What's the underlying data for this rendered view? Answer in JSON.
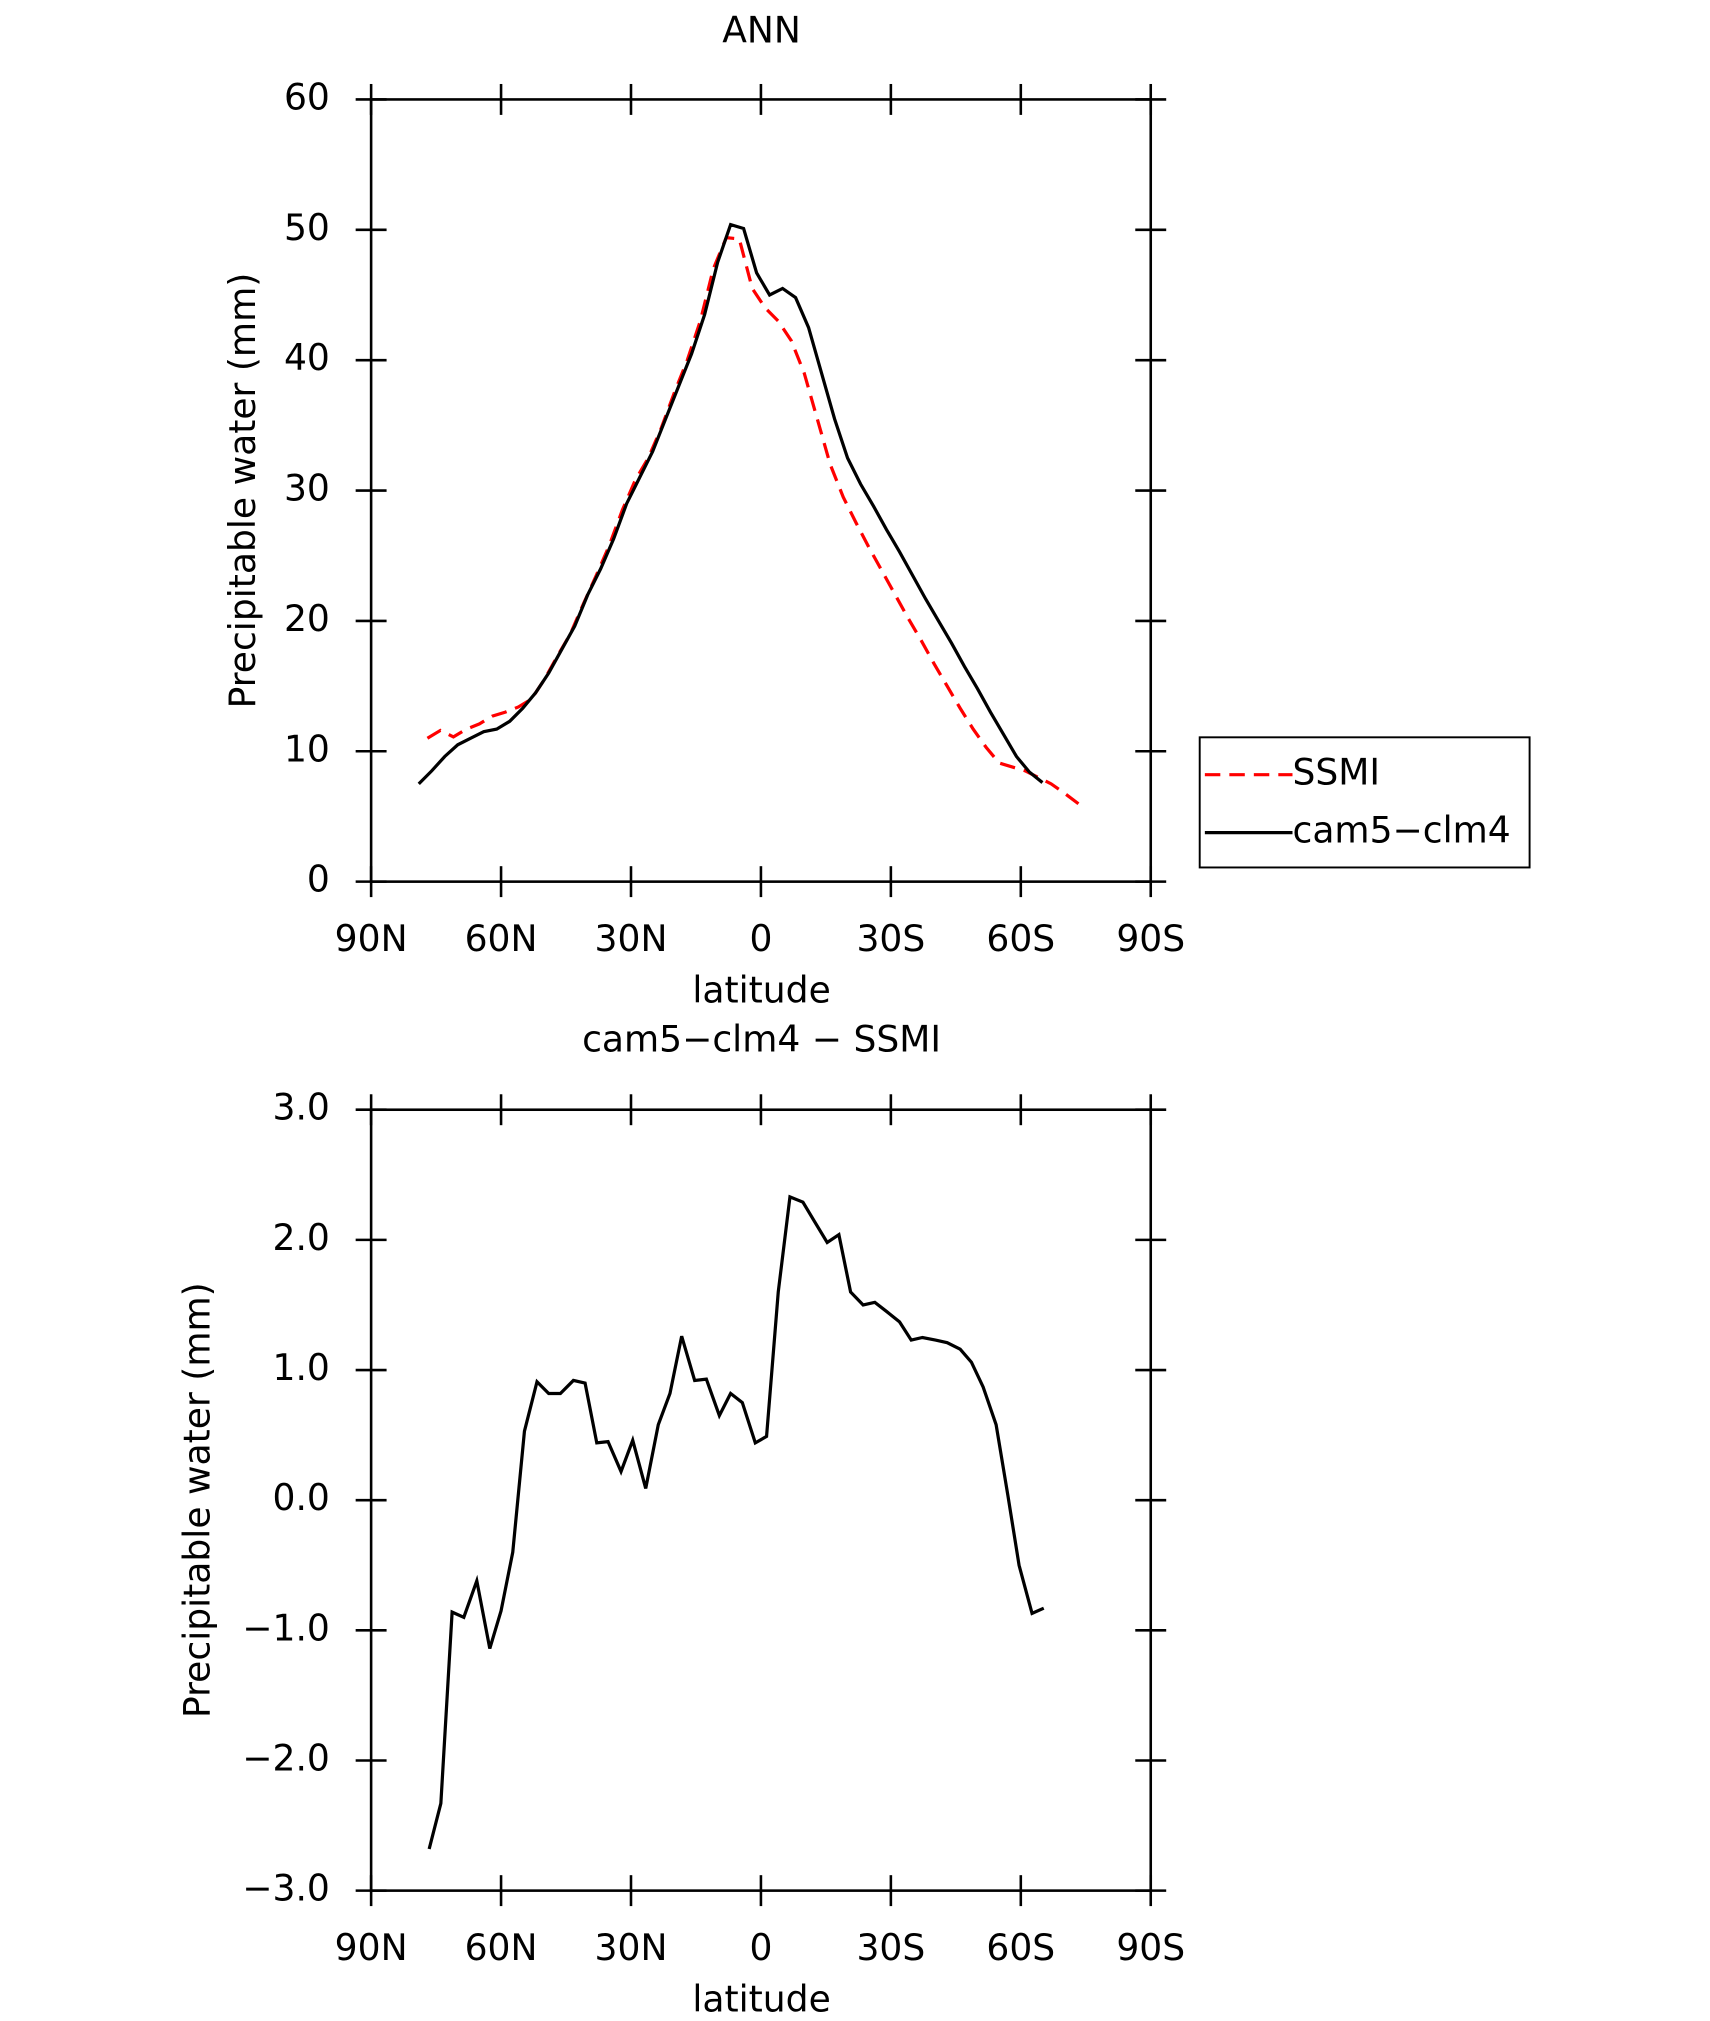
{
  "chart_data": [
    {
      "type": "line",
      "title": "ANN",
      "xlabel": "latitude",
      "ylabel": "Precipitable water (mm)",
      "xlim": [
        90,
        -90
      ],
      "xticks": [
        {
          "value": 90,
          "label": "90N"
        },
        {
          "value": 60,
          "label": "60N"
        },
        {
          "value": 30,
          "label": "30N"
        },
        0,
        {
          "value": -30,
          "label": "30S"
        },
        {
          "value": -60,
          "label": "60S"
        },
        {
          "value": -90,
          "label": "90S"
        }
      ],
      "ylim": [
        0,
        60
      ],
      "yticks": [
        0,
        10,
        20,
        30,
        40,
        50,
        60
      ],
      "legend": "right",
      "series": [
        {
          "name": "SSMI",
          "color": "#ff0000",
          "linestyle": "dashed",
          "x": [
            77,
            74,
            71,
            68,
            65,
            62,
            59,
            56,
            53,
            50,
            47,
            44,
            41,
            38,
            35,
            32,
            29,
            26,
            23,
            20,
            17,
            14,
            11,
            8,
            5,
            2,
            -1,
            -4,
            -7,
            -10,
            -13,
            -16,
            -19,
            -22,
            -25,
            -28,
            -31,
            -34,
            -37,
            -40,
            -43,
            -46,
            -49,
            -52,
            -55,
            -58,
            -61,
            -64,
            -67,
            -70,
            -74
          ],
          "values": [
            11,
            11.6,
            11.1,
            11.7,
            12.1,
            12.7,
            13,
            13.4,
            14,
            15.5,
            17.3,
            19,
            21.3,
            23.5,
            25.8,
            28.5,
            30.8,
            32.5,
            34.8,
            37.5,
            40,
            43,
            47,
            49.4,
            49.3,
            45.5,
            44,
            43,
            41.5,
            39,
            35.5,
            32,
            29.5,
            27.5,
            25.6,
            23.8,
            22,
            20.2,
            18.5,
            16.7,
            15,
            13.3,
            11.7,
            10.3,
            9.1,
            8.8,
            8.5,
            8,
            7.5,
            6.8,
            5.8
          ]
        },
        {
          "name": "cam5−clm4",
          "color": "#000000",
          "linestyle": "solid",
          "x": [
            79,
            76,
            73,
            70,
            67,
            64,
            61,
            58,
            55,
            52,
            49,
            46,
            43,
            40,
            37,
            34,
            31,
            28,
            25,
            22,
            19,
            16,
            13,
            10,
            7,
            4,
            1,
            -2,
            -5,
            -8,
            -11,
            -14,
            -17,
            -20,
            -23,
            -26,
            -29,
            -32,
            -35,
            -38,
            -41,
            -44,
            -47,
            -50,
            -53,
            -56,
            -59,
            -62,
            -65
          ],
          "values": [
            7.5,
            8.5,
            9.6,
            10.5,
            11,
            11.5,
            11.7,
            12.3,
            13.3,
            14.5,
            16,
            17.8,
            19.6,
            22,
            24,
            26.3,
            29,
            31,
            33,
            35.5,
            38,
            40.5,
            43.5,
            47.5,
            50.4,
            50.1,
            46.7,
            45,
            45.5,
            44.8,
            42.5,
            39,
            35.5,
            32.5,
            30.5,
            28.8,
            27,
            25.3,
            23.5,
            21.7,
            20,
            18.3,
            16.5,
            14.8,
            13,
            11.3,
            9.6,
            8.4,
            7.6
          ]
        }
      ]
    },
    {
      "type": "line",
      "title": "cam5−clm4 − SSMI",
      "xlabel": "latitude",
      "ylabel": "Precipitable water (mm)",
      "xlim": [
        90,
        -90
      ],
      "xticks": [
        {
          "value": 90,
          "label": "90N"
        },
        {
          "value": 60,
          "label": "60N"
        },
        {
          "value": 30,
          "label": "30N"
        },
        0,
        {
          "value": -30,
          "label": "30S"
        },
        {
          "value": -60,
          "label": "60S"
        },
        {
          "value": -90,
          "label": "90S"
        }
      ],
      "ylim": [
        -3,
        3
      ],
      "yticks": [
        {
          "value": -3,
          "label": "−3.0"
        },
        {
          "value": -2,
          "label": "−2.0"
        },
        {
          "value": -1,
          "label": "−1.0"
        },
        {
          "value": 0,
          "label": "0.0"
        },
        {
          "value": 1,
          "label": "1.0"
        },
        {
          "value": 2,
          "label": "2.0"
        },
        {
          "value": 3,
          "label": "3.0"
        }
      ],
      "series": [
        {
          "color": "#000000",
          "linestyle": "solid",
          "x": [
            76.6,
            73.9,
            71.3,
            68.6,
            65.6,
            62.6,
            60.0,
            57.3,
            54.6,
            51.7,
            49.0,
            46.3,
            43.3,
            40.6,
            37.9,
            35.3,
            32.3,
            29.6,
            26.6,
            23.7,
            21.0,
            18.3,
            15.3,
            12.6,
            9.6,
            7.0,
            4.3,
            1.3,
            -1.3,
            -4.0,
            -6.7,
            -9.7,
            -12.4,
            -15.3,
            -18.0,
            -20.7,
            -23.6,
            -26.3,
            -29.0,
            -32.0,
            -34.7,
            -37.3,
            -40.3,
            -43.0,
            -46.0,
            -48.6,
            -51.3,
            -54.3,
            -57.0,
            -59.6,
            -62.6,
            -65.3
          ],
          "values": [
            -2.68,
            -2.33,
            -0.86,
            -0.9,
            -0.62,
            -1.14,
            -0.85,
            -0.4,
            0.53,
            0.91,
            0.82,
            0.82,
            0.92,
            0.9,
            0.44,
            0.45,
            0.22,
            0.46,
            0.09,
            0.58,
            0.82,
            1.26,
            0.92,
            0.93,
            0.65,
            0.82,
            0.75,
            0.44,
            0.49,
            1.6,
            2.33,
            2.29,
            2.14,
            1.98,
            2.04,
            1.6,
            1.5,
            1.52,
            1.45,
            1.37,
            1.23,
            1.25,
            1.23,
            1.21,
            1.16,
            1.06,
            0.87,
            0.58,
            0.04,
            -0.5,
            -0.87,
            -0.83
          ]
        }
      ]
    }
  ]
}
